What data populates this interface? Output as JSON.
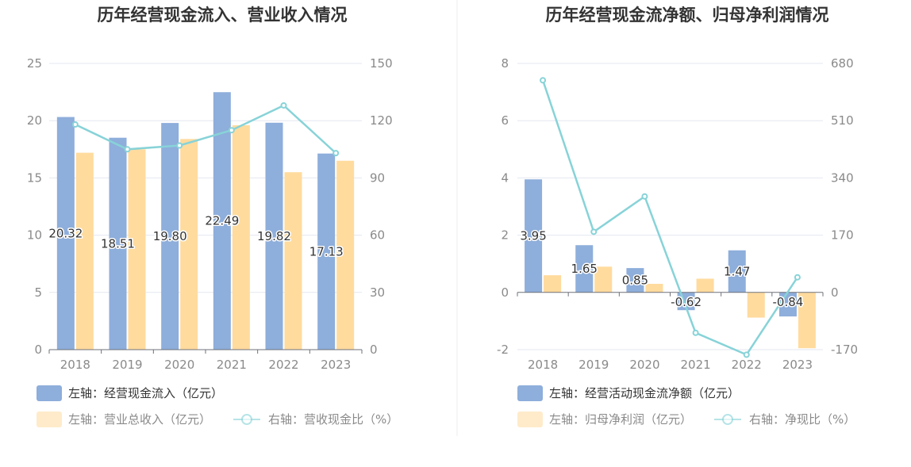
{
  "chart_data": [
    {
      "type": "bar",
      "title": "历年经营现金流入、营业收入情况",
      "categories": [
        "2018",
        "2019",
        "2020",
        "2021",
        "2022",
        "2023"
      ],
      "left_axis": {
        "ticks": [
          "0",
          "5",
          "10",
          "15",
          "20",
          "25"
        ],
        "ylim": [
          0,
          25
        ]
      },
      "right_axis": {
        "ticks": [
          "0",
          "30",
          "60",
          "90",
          "120",
          "150"
        ],
        "ylim": [
          0,
          150
        ]
      },
      "series": [
        {
          "name": "左轴：经营现金流入（亿元）",
          "type": "bar",
          "axis": "left",
          "color": "#8eaedb",
          "values": [
            20.32,
            18.51,
            19.8,
            22.49,
            19.82,
            17.13
          ],
          "labels": [
            "20.32",
            "18.51",
            "19.80",
            "22.49",
            "19.82",
            "17.13"
          ]
        },
        {
          "name": "左轴：营业总收入（亿元）",
          "type": "bar",
          "axis": "left",
          "color": "#ffdb9e",
          "values": [
            17.2,
            17.5,
            18.4,
            19.6,
            15.5,
            16.5
          ]
        },
        {
          "name": "右轴：营收现金比（%）",
          "type": "line",
          "axis": "right",
          "color": "#87d3d8",
          "values": [
            118,
            105,
            107,
            115,
            128,
            103
          ]
        }
      ]
    },
    {
      "type": "bar",
      "title": "历年经营现金流净额、归母净利润情况",
      "categories": [
        "2018",
        "2019",
        "2020",
        "2021",
        "2022",
        "2023"
      ],
      "left_axis": {
        "ticks": [
          "-2",
          "0",
          "2",
          "4",
          "6",
          "8"
        ],
        "ylim": [
          -2,
          8
        ]
      },
      "right_axis": {
        "ticks": [
          "-170",
          "0",
          "170",
          "340",
          "510",
          "680"
        ],
        "ylim": [
          -170,
          680
        ]
      },
      "series": [
        {
          "name": "左轴：经营活动现金流净额（亿元）",
          "type": "bar",
          "axis": "left",
          "color": "#8eaedb",
          "values": [
            3.95,
            1.65,
            0.85,
            -0.62,
            1.47,
            -0.84
          ],
          "labels": [
            "3.95",
            "1.65",
            "0.85",
            "-0.62",
            "1.47",
            "-0.84"
          ]
        },
        {
          "name": "左轴：归母净利润（亿元）",
          "type": "bar",
          "axis": "left",
          "color": "#ffdb9e",
          "values": [
            0.6,
            0.9,
            0.3,
            0.48,
            -0.88,
            -1.95
          ]
        },
        {
          "name": "右轴：净现比（%）",
          "type": "line",
          "axis": "right",
          "color": "#87d3d8",
          "values": [
            630,
            180,
            285,
            -120,
            -185,
            45
          ]
        }
      ]
    }
  ]
}
